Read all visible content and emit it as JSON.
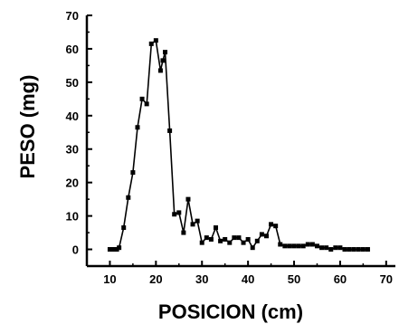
{
  "chart_data": {
    "type": "line",
    "title": "",
    "xlabel": "POSICION (cm)",
    "ylabel": "PESO (mg)",
    "xlim": [
      5,
      72
    ],
    "ylim": [
      -5,
      70
    ],
    "x_ticks": [
      10,
      20,
      30,
      40,
      50,
      60,
      70
    ],
    "y_ticks": [
      0,
      10,
      20,
      30,
      40,
      50,
      60,
      70
    ],
    "grid": false,
    "legend": "none",
    "marker": "square",
    "line_color": "#000000",
    "series": [
      {
        "x": [
          10,
          10.5,
          11,
          11.5,
          12,
          13,
          14,
          15,
          16,
          17,
          18,
          19,
          20,
          21,
          21.5,
          22,
          23,
          24,
          25,
          26,
          27,
          28,
          29,
          30,
          31,
          32,
          33,
          34,
          35,
          36,
          37,
          38,
          39,
          40,
          41,
          42,
          43,
          44,
          45,
          46,
          47,
          48,
          49,
          50,
          51,
          52,
          53,
          54,
          55,
          56,
          57,
          58,
          59,
          60,
          61,
          62,
          63,
          64,
          65,
          66
        ],
        "y": [
          0,
          0,
          0,
          0,
          0.5,
          6.5,
          15.5,
          23,
          36.5,
          45,
          43.5,
          61.5,
          62.5,
          53.5,
          56.5,
          59,
          35.5,
          10.5,
          11,
          5,
          15,
          7.5,
          8.5,
          2,
          3.5,
          3,
          6.5,
          2.5,
          3,
          2,
          3.5,
          3.5,
          2,
          3,
          0.5,
          2.5,
          4.5,
          4,
          7.5,
          7,
          1.5,
          1,
          1,
          1,
          1,
          1,
          1.5,
          1.5,
          1,
          0.5,
          0.5,
          0,
          0.5,
          0.5,
          0,
          0,
          0,
          0,
          0,
          0
        ]
      }
    ]
  }
}
